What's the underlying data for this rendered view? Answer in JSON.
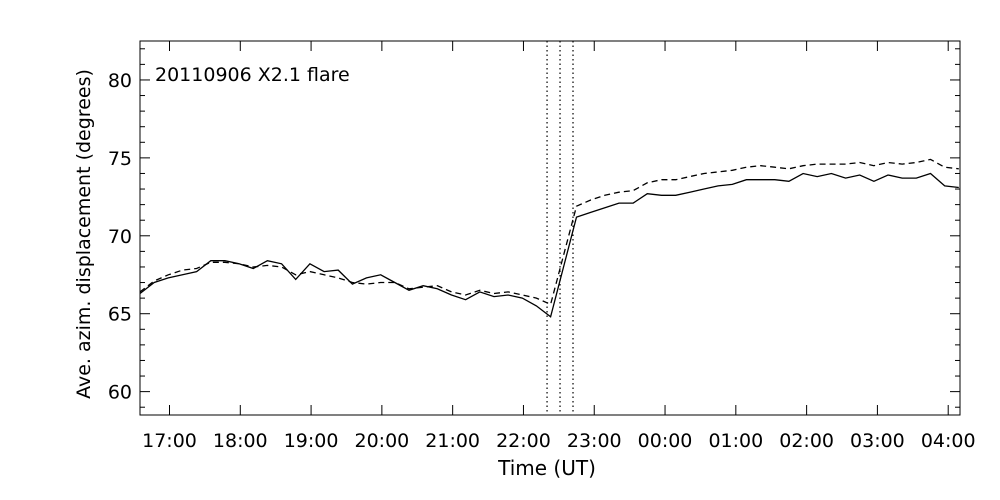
{
  "chart_data": {
    "type": "line",
    "title": "",
    "annotation": "20110906  X2.1  flare",
    "xlabel": "Time  (UT)",
    "ylabel": "Ave.  azim.  displacement  (degrees)",
    "x_ticks": [
      "17:00",
      "18:00",
      "19:00",
      "20:00",
      "21:00",
      "22:00",
      "23:00",
      "00:00",
      "01:00",
      "02:00",
      "03:00",
      "04:00"
    ],
    "ylim": [
      58.5,
      82.5
    ],
    "y_ticks": [
      60,
      65,
      70,
      75,
      80
    ],
    "y_tick_labels": [
      "60",
      "65",
      "70",
      "75",
      "80"
    ],
    "xlim": [
      "2011-09-06 16:35",
      "2011-09-07 04:10"
    ],
    "vertical_markers": [
      "2011-09-06 22:20",
      "2011-09-06 22:31",
      "2011-09-06 22:42"
    ],
    "grid": false,
    "series": [
      {
        "style": "solid",
        "x": [
          "2011-09-06 16:35",
          "2011-09-06 16:47",
          "2011-09-06 16:59",
          "2011-09-06 17:11",
          "2011-09-06 17:23",
          "2011-09-06 17:35",
          "2011-09-06 17:47",
          "2011-09-06 17:59",
          "2011-09-06 18:11",
          "2011-09-06 18:23",
          "2011-09-06 18:35",
          "2011-09-06 18:47",
          "2011-09-06 18:59",
          "2011-09-06 19:11",
          "2011-09-06 19:23",
          "2011-09-06 19:35",
          "2011-09-06 19:47",
          "2011-09-06 19:59",
          "2011-09-06 20:11",
          "2011-09-06 20:23",
          "2011-09-06 20:35",
          "2011-09-06 20:47",
          "2011-09-06 20:59",
          "2011-09-06 21:11",
          "2011-09-06 21:23",
          "2011-09-06 21:35",
          "2011-09-06 21:47",
          "2011-09-06 21:59",
          "2011-09-06 22:11",
          "2011-09-06 22:23",
          "2011-09-06 22:45",
          "2011-09-06 22:57",
          "2011-09-06 23:09",
          "2011-09-06 23:21",
          "2011-09-06 23:33",
          "2011-09-06 23:45",
          "2011-09-06 23:57",
          "2011-09-07 00:09",
          "2011-09-07 00:21",
          "2011-09-07 00:33",
          "2011-09-07 00:45",
          "2011-09-07 00:57",
          "2011-09-07 01:09",
          "2011-09-07 01:21",
          "2011-09-07 01:33",
          "2011-09-07 01:45",
          "2011-09-07 01:57",
          "2011-09-07 02:09",
          "2011-09-07 02:21",
          "2011-09-07 02:33",
          "2011-09-07 02:45",
          "2011-09-07 02:57",
          "2011-09-07 03:09",
          "2011-09-07 03:21",
          "2011-09-07 03:33",
          "2011-09-07 03:45",
          "2011-09-07 03:57",
          "2011-09-07 04:09"
        ],
        "values": [
          66.3,
          67.0,
          67.3,
          67.5,
          67.7,
          68.4,
          68.4,
          68.2,
          67.9,
          68.4,
          68.2,
          67.2,
          68.2,
          67.7,
          67.8,
          66.9,
          67.3,
          67.5,
          67.0,
          66.5,
          66.8,
          66.6,
          66.2,
          65.9,
          66.4,
          66.1,
          66.2,
          66.0,
          65.5,
          64.8,
          71.2,
          71.5,
          71.8,
          72.1,
          72.1,
          72.7,
          72.6,
          72.6,
          72.8,
          73.0,
          73.2,
          73.3,
          73.6,
          73.6,
          73.6,
          73.5,
          74.0,
          73.8,
          74.0,
          73.7,
          73.9,
          73.5,
          73.9,
          73.7,
          73.7,
          74.0,
          73.2,
          73.1
        ]
      },
      {
        "style": "dashed",
        "x": [
          "2011-09-06 16:35",
          "2011-09-06 16:47",
          "2011-09-06 16:59",
          "2011-09-06 17:11",
          "2011-09-06 17:23",
          "2011-09-06 17:35",
          "2011-09-06 17:47",
          "2011-09-06 17:59",
          "2011-09-06 18:11",
          "2011-09-06 18:23",
          "2011-09-06 18:35",
          "2011-09-06 18:47",
          "2011-09-06 18:59",
          "2011-09-06 19:11",
          "2011-09-06 19:23",
          "2011-09-06 19:35",
          "2011-09-06 19:47",
          "2011-09-06 19:59",
          "2011-09-06 20:11",
          "2011-09-06 20:23",
          "2011-09-06 20:35",
          "2011-09-06 20:47",
          "2011-09-06 20:59",
          "2011-09-06 21:11",
          "2011-09-06 21:23",
          "2011-09-06 21:35",
          "2011-09-06 21:47",
          "2011-09-06 21:59",
          "2011-09-06 22:11",
          "2011-09-06 22:23",
          "2011-09-06 22:45",
          "2011-09-06 22:57",
          "2011-09-06 23:09",
          "2011-09-06 23:21",
          "2011-09-06 23:33",
          "2011-09-06 23:45",
          "2011-09-06 23:57",
          "2011-09-07 00:09",
          "2011-09-07 00:21",
          "2011-09-07 00:33",
          "2011-09-07 00:45",
          "2011-09-07 00:57",
          "2011-09-07 01:09",
          "2011-09-07 01:21",
          "2011-09-07 01:33",
          "2011-09-07 01:45",
          "2011-09-07 01:57",
          "2011-09-07 02:09",
          "2011-09-07 02:21",
          "2011-09-07 02:33",
          "2011-09-07 02:45",
          "2011-09-07 02:57",
          "2011-09-07 03:09",
          "2011-09-07 03:21",
          "2011-09-07 03:33",
          "2011-09-07 03:45",
          "2011-09-07 03:57",
          "2011-09-07 04:09"
        ],
        "values": [
          66.4,
          67.1,
          67.5,
          67.8,
          67.9,
          68.3,
          68.3,
          68.2,
          68.0,
          68.1,
          68.0,
          67.5,
          67.7,
          67.5,
          67.3,
          67.0,
          66.9,
          67.0,
          67.0,
          66.6,
          66.7,
          66.8,
          66.4,
          66.2,
          66.5,
          66.3,
          66.4,
          66.2,
          66.0,
          65.6,
          71.9,
          72.3,
          72.6,
          72.8,
          72.9,
          73.4,
          73.6,
          73.6,
          73.8,
          74.0,
          74.1,
          74.2,
          74.4,
          74.5,
          74.4,
          74.3,
          74.5,
          74.6,
          74.6,
          74.6,
          74.7,
          74.5,
          74.7,
          74.6,
          74.7,
          74.9,
          74.4,
          74.3
        ]
      }
    ]
  }
}
